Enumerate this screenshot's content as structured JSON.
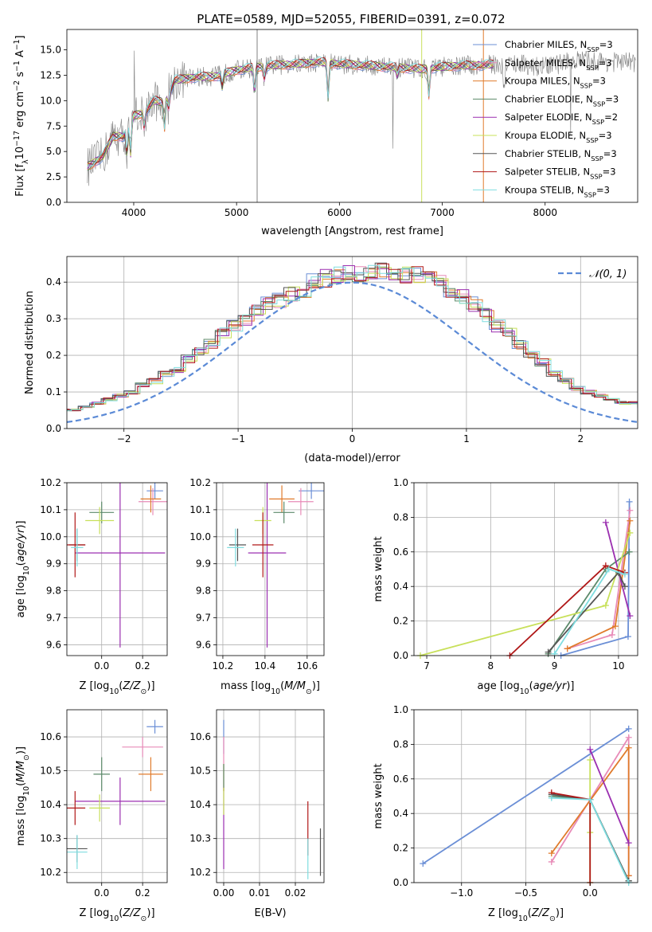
{
  "figure_title": "PLATE=0589, MJD=52055, FIBERID=0391, z=0.072",
  "colors": {
    "chabrier_miles": "#6b8fd6",
    "salpeter_miles": "#e88bb8",
    "kroupa_miles": "#e07b2c",
    "chabrier_elodie": "#5c8a6a",
    "salpeter_elodie": "#9b2fb0",
    "kroupa_elodie": "#c8e05a",
    "chabrier_stelib": "#555555",
    "salpeter_stelib": "#b01818",
    "kroupa_stelib": "#7fdde0",
    "data": "#808080",
    "gaussian": "#5b8ad6",
    "grid": "#b0b0b0"
  },
  "chart_data": [
    {
      "type": "line",
      "panel": "spectrum",
      "title": "PLATE=0589, MJD=52055, FIBERID=0391, z=0.072",
      "xlabel": "wavelength [Angstrom, rest frame]",
      "ylabel": "Flux [f_λ 10^-17 erg cm^-2 s^-1 A^-1]",
      "xlim": [
        3350,
        8900
      ],
      "ylim": [
        0,
        17.0
      ],
      "xticks": [
        4000,
        5000,
        6000,
        7000,
        8000
      ],
      "xtick_labels": [
        "4000",
        "5000",
        "6000",
        "7000",
        "8000"
      ],
      "yticks": [
        0.0,
        2.5,
        5.0,
        7.5,
        10.0,
        12.5,
        15.0
      ],
      "ytick_labels": [
        "0.0",
        "2.5",
        "5.0",
        "7.5",
        "10.0",
        "12.5",
        "15.0"
      ],
      "grid": false,
      "legend_position": "top-right",
      "legend": [
        "Chabrier MILES, N_SSP=3",
        "Salpeter MILES, N_SSP=3",
        "Kroupa MILES, N_SSP=3",
        "Chabrier ELODIE, N_SSP=3",
        "Salpeter ELODIE, N_SSP=2",
        "Kroupa ELODIE, N_SSP=3",
        "Chabrier STELIB, N_SSP=3",
        "Salpeter STELIB, N_SSP=3",
        "Kroupa STELIB, N_SSP=3"
      ],
      "continuum": {
        "x": [
          3550,
          3700,
          3800,
          3900,
          4000,
          4100,
          4200,
          4300,
          4400,
          4600,
          4800,
          5000,
          5200,
          5400,
          5600,
          5800,
          6000,
          6200,
          6500,
          6800,
          7100,
          7400,
          7700,
          8000,
          8300,
          8600
        ],
        "y": [
          3.5,
          4.5,
          6.5,
          6.5,
          8.5,
          8.8,
          10.0,
          9.8,
          12.0,
          12.3,
          12.4,
          13.0,
          13.3,
          13.5,
          13.6,
          13.8,
          13.6,
          13.5,
          13.3,
          13.1,
          13.4,
          13.5,
          13.7,
          13.3,
          14.0,
          13.8
        ]
      }
    },
    {
      "type": "bar",
      "panel": "residual-histogram",
      "xlabel": "(data-model)/error",
      "ylabel": "Normed distribution",
      "xlim": [
        -2.5,
        2.5
      ],
      "ylim": [
        0,
        0.47
      ],
      "xticks": [
        -2,
        -1,
        0,
        1,
        2
      ],
      "xtick_labels": [
        "−2",
        "−1",
        "0",
        "1",
        "2"
      ],
      "yticks": [
        0.0,
        0.1,
        0.2,
        0.3,
        0.4
      ],
      "ytick_labels": [
        "0.0",
        "0.1",
        "0.2",
        "0.3",
        "0.4"
      ],
      "grid": true,
      "legend_position": "top-right",
      "gaussian_label": "𝒩(0, 1)",
      "bin_width": 0.1,
      "base_histogram": [
        0.03,
        0.03,
        0.04,
        0.04,
        0.05,
        0.05,
        0.06,
        0.07,
        0.08,
        0.09,
        0.1,
        0.12,
        0.13,
        0.15,
        0.16,
        0.19,
        0.21,
        0.23,
        0.26,
        0.28,
        0.3,
        0.32,
        0.34,
        0.35,
        0.37,
        0.38,
        0.4,
        0.41,
        0.42,
        0.42,
        0.42,
        0.43,
        0.43,
        0.43,
        0.42,
        0.42,
        0.41,
        0.4,
        0.38,
        0.36,
        0.34,
        0.31,
        0.28,
        0.26,
        0.23,
        0.2,
        0.18,
        0.15,
        0.13,
        0.11,
        0.1,
        0.09,
        0.08,
        0.07,
        0.07,
        0.06,
        0.05,
        0.04,
        0.04,
        0.03
      ]
    },
    {
      "type": "scatter",
      "panel": "age-vs-Z",
      "xlabel": "Z [log10(Z/Z⊙)]",
      "ylabel": "age  [log10(age/yr)]",
      "xlim": [
        -0.17,
        0.32
      ],
      "ylim": [
        9.56,
        10.2
      ],
      "xticks": [
        0.0,
        0.2
      ],
      "xtick_labels": [
        "0.0",
        "0.2"
      ],
      "yticks": [
        9.6,
        9.7,
        9.8,
        9.9,
        10.0,
        10.1,
        10.2
      ],
      "ytick_labels": [
        "9.6",
        "9.7",
        "9.8",
        "9.9",
        "10.0",
        "10.1",
        "10.2"
      ],
      "grid": true,
      "points": [
        {
          "key": "chabrier_miles",
          "x": 0.26,
          "y": 10.17,
          "xerr": 0.04,
          "yerr": 0.03
        },
        {
          "key": "salpeter_miles",
          "x": 0.25,
          "y": 10.13,
          "xerr": 0.07,
          "yerr": 0.05
        },
        {
          "key": "kroupa_miles",
          "x": 0.24,
          "y": 10.14,
          "xerr": 0.05,
          "yerr": 0.05
        },
        {
          "key": "chabrier_elodie",
          "x": 0.0,
          "y": 10.09,
          "xerr": 0.06,
          "yerr": 0.04
        },
        {
          "key": "salpeter_elodie",
          "x": 0.09,
          "y": 9.94,
          "xerr": 0.22,
          "yerr": 0.35
        },
        {
          "key": "kroupa_elodie",
          "x": -0.01,
          "y": 10.06,
          "xerr": 0.07,
          "yerr": 0.05
        },
        {
          "key": "chabrier_stelib",
          "x": -0.12,
          "y": 9.97,
          "xerr": 0.04,
          "yerr": 0.06
        },
        {
          "key": "salpeter_stelib",
          "x": -0.13,
          "y": 9.97,
          "xerr": 0.05,
          "yerr": 0.12
        },
        {
          "key": "kroupa_stelib",
          "x": -0.12,
          "y": 9.96,
          "xerr": 0.03,
          "yerr": 0.07
        }
      ]
    },
    {
      "type": "scatter",
      "panel": "age-vs-mass",
      "xlabel": "mass [log10(M/M⊙)]",
      "ylabel": "",
      "xlim": [
        10.17,
        10.68
      ],
      "ylim": [
        9.56,
        10.2
      ],
      "xticks": [
        10.2,
        10.4,
        10.6
      ],
      "xtick_labels": [
        "10.2",
        "10.4",
        "10.6"
      ],
      "yticks": [
        9.6,
        9.7,
        9.8,
        9.9,
        10.0,
        10.1,
        10.2
      ],
      "ytick_labels": [
        "9.6",
        "9.7",
        "9.8",
        "9.9",
        "10.0",
        "10.1",
        "10.2"
      ],
      "grid": true,
      "points": [
        {
          "key": "chabrier_miles",
          "x": 10.62,
          "y": 10.17,
          "xerr": 0.06,
          "yerr": 0.03
        },
        {
          "key": "salpeter_miles",
          "x": 10.57,
          "y": 10.13,
          "xerr": 0.06,
          "yerr": 0.05
        },
        {
          "key": "kroupa_miles",
          "x": 10.48,
          "y": 10.14,
          "xerr": 0.06,
          "yerr": 0.05
        },
        {
          "key": "chabrier_elodie",
          "x": 10.49,
          "y": 10.09,
          "xerr": 0.05,
          "yerr": 0.04
        },
        {
          "key": "salpeter_elodie",
          "x": 10.41,
          "y": 9.94,
          "xerr": 0.09,
          "yerr": 0.35
        },
        {
          "key": "kroupa_elodie",
          "x": 10.39,
          "y": 10.06,
          "xerr": 0.04,
          "yerr": 0.05
        },
        {
          "key": "chabrier_stelib",
          "x": 10.27,
          "y": 9.97,
          "xerr": 0.04,
          "yerr": 0.06
        },
        {
          "key": "salpeter_stelib",
          "x": 10.39,
          "y": 9.97,
          "xerr": 0.05,
          "yerr": 0.12
        },
        {
          "key": "kroupa_stelib",
          "x": 10.26,
          "y": 9.96,
          "xerr": 0.04,
          "yerr": 0.07
        }
      ]
    },
    {
      "type": "line",
      "panel": "mass-weight-vs-age",
      "xlabel": "age  [log10(age/yr)]",
      "ylabel": "mass weight",
      "xlim": [
        6.8,
        10.3
      ],
      "ylim": [
        0.0,
        1.0
      ],
      "xticks": [
        7,
        8,
        9,
        10
      ],
      "xtick_labels": [
        "7",
        "8",
        "9",
        "10"
      ],
      "yticks": [
        0.0,
        0.2,
        0.4,
        0.6,
        0.8,
        1.0
      ],
      "ytick_labels": [
        "0.0",
        "0.2",
        "0.4",
        "0.6",
        "0.8",
        "1.0"
      ],
      "grid": true,
      "series": [
        {
          "key": "chabrier_miles",
          "x": [
            9.1,
            10.15,
            10.17
          ],
          "y": [
            0.0,
            0.11,
            0.89
          ]
        },
        {
          "key": "salpeter_miles",
          "x": [
            9.2,
            9.9,
            10.18
          ],
          "y": [
            0.04,
            0.12,
            0.84
          ]
        },
        {
          "key": "kroupa_miles",
          "x": [
            9.2,
            9.95,
            10.18
          ],
          "y": [
            0.04,
            0.17,
            0.78
          ]
        },
        {
          "key": "chabrier_elodie",
          "x": [
            8.9,
            9.8,
            10.17
          ],
          "y": [
            0.01,
            0.5,
            0.6
          ]
        },
        {
          "key": "salpeter_elodie",
          "x": [
            9.8,
            10.18
          ],
          "y": [
            0.77,
            0.23
          ]
        },
        {
          "key": "kroupa_elodie",
          "x": [
            6.9,
            9.8,
            10.18
          ],
          "y": [
            0.0,
            0.29,
            0.71
          ]
        },
        {
          "key": "chabrier_stelib",
          "x": [
            8.9,
            10.0,
            10.1
          ],
          "y": [
            0.02,
            0.48,
            0.4
          ]
        },
        {
          "key": "salpeter_stelib",
          "x": [
            8.3,
            9.8,
            10.1
          ],
          "y": [
            0.0,
            0.52,
            0.48
          ]
        },
        {
          "key": "kroupa_stelib",
          "x": [
            9.0,
            9.85,
            10.1
          ],
          "y": [
            0.01,
            0.5,
            0.47
          ]
        }
      ]
    },
    {
      "type": "scatter",
      "panel": "mass-vs-Z",
      "xlabel": "Z [log10(Z/Z⊙)]",
      "ylabel": "mass [log10(M/M⊙)]",
      "xlim": [
        -0.17,
        0.32
      ],
      "ylim": [
        10.17,
        10.68
      ],
      "xticks": [
        0.0,
        0.2
      ],
      "xtick_labels": [
        "0.0",
        "0.2"
      ],
      "yticks": [
        10.2,
        10.3,
        10.4,
        10.5,
        10.6
      ],
      "ytick_labels": [
        "10.2",
        "10.3",
        "10.4",
        "10.5",
        "10.6"
      ],
      "grid": true,
      "points": [
        {
          "key": "chabrier_miles",
          "x": 0.26,
          "y": 10.63,
          "xerr": 0.04,
          "yerr": 0.02
        },
        {
          "key": "salpeter_miles",
          "x": 0.2,
          "y": 10.57,
          "xerr": 0.1,
          "yerr": 0.03
        },
        {
          "key": "kroupa_miles",
          "x": 0.24,
          "y": 10.49,
          "xerr": 0.06,
          "yerr": 0.05
        },
        {
          "key": "chabrier_elodie",
          "x": 0.0,
          "y": 10.49,
          "xerr": 0.04,
          "yerr": 0.05
        },
        {
          "key": "salpeter_elodie",
          "x": 0.09,
          "y": 10.41,
          "xerr": 0.22,
          "yerr": 0.07
        },
        {
          "key": "kroupa_elodie",
          "x": -0.01,
          "y": 10.39,
          "xerr": 0.05,
          "yerr": 0.04
        },
        {
          "key": "chabrier_stelib",
          "x": -0.12,
          "y": 10.27,
          "xerr": 0.05,
          "yerr": 0.04
        },
        {
          "key": "salpeter_stelib",
          "x": -0.13,
          "y": 10.39,
          "xerr": 0.05,
          "yerr": 0.05
        },
        {
          "key": "kroupa_stelib",
          "x": -0.12,
          "y": 10.26,
          "xerr": 0.05,
          "yerr": 0.05
        }
      ]
    },
    {
      "type": "scatter",
      "panel": "mass-vs-ebv",
      "xlabel": "E(B-V)",
      "ylabel": "",
      "xlim": [
        -0.002,
        0.028
      ],
      "ylim": [
        10.17,
        10.68
      ],
      "xticks": [
        0.0,
        0.01,
        0.02
      ],
      "xtick_labels": [
        "0.00",
        "0.01",
        "0.02"
      ],
      "yticks": [
        10.2,
        10.3,
        10.4,
        10.5,
        10.6
      ],
      "ytick_labels": [
        "10.2",
        "10.3",
        "10.4",
        "10.5",
        "10.6"
      ],
      "grid": true,
      "points": [
        {
          "key": "chabrier_miles",
          "x": 0.0,
          "y": 10.6,
          "xerr": 0.0,
          "yerr": 0.05
        },
        {
          "key": "salpeter_miles",
          "x": 0.0,
          "y": 10.56,
          "xerr": 0.0,
          "yerr": 0.04
        },
        {
          "key": "kroupa_miles",
          "x": 0.0,
          "y": 10.48,
          "xerr": 0.0,
          "yerr": 0.04
        },
        {
          "key": "chabrier_elodie",
          "x": 0.0,
          "y": 10.48,
          "xerr": 0.0,
          "yerr": 0.04
        },
        {
          "key": "salpeter_elodie",
          "x": 0.0,
          "y": 10.33,
          "xerr": 0.0,
          "yerr": 0.12
        },
        {
          "key": "kroupa_elodie",
          "x": 0.0,
          "y": 10.41,
          "xerr": 0.0,
          "yerr": 0.04
        },
        {
          "key": "chabrier_stelib",
          "x": 0.027,
          "y": 10.26,
          "xerr": 0.0,
          "yerr": 0.07
        },
        {
          "key": "salpeter_stelib",
          "x": 0.0235,
          "y": 10.33,
          "xerr": 0.0,
          "yerr": 0.08
        },
        {
          "key": "kroupa_stelib",
          "x": 0.0235,
          "y": 10.24,
          "xerr": 0.0,
          "yerr": 0.06
        }
      ]
    },
    {
      "type": "line",
      "panel": "mass-weight-vs-Z",
      "xlabel": "Z [log10(Z/Z⊙)]",
      "ylabel": "mass weight",
      "xlim": [
        -1.37,
        0.37
      ],
      "ylim": [
        0.0,
        1.0
      ],
      "xticks": [
        -1.0,
        -0.5,
        0.0
      ],
      "xtick_labels": [
        "−1.0",
        "−0.5",
        "0.0"
      ],
      "yticks": [
        0.0,
        0.2,
        0.4,
        0.6,
        0.8,
        1.0
      ],
      "ytick_labels": [
        "0.0",
        "0.2",
        "0.4",
        "0.6",
        "0.8",
        "1.0"
      ],
      "grid": true,
      "series": [
        {
          "key": "chabrier_miles",
          "x": [
            -1.3,
            0.3
          ],
          "y": [
            0.11,
            0.89
          ]
        },
        {
          "key": "salpeter_miles",
          "x": [
            -0.3,
            0.3,
            0.3
          ],
          "y": [
            0.12,
            0.84,
            0.04
          ]
        },
        {
          "key": "kroupa_miles",
          "x": [
            -0.3,
            0.3,
            0.3
          ],
          "y": [
            0.17,
            0.78,
            0.04
          ]
        },
        {
          "key": "chabrier_elodie",
          "x": [
            -0.3,
            0.0,
            0.3
          ],
          "y": [
            0.5,
            0.48,
            0.01
          ]
        },
        {
          "key": "salpeter_elodie",
          "x": [
            0.0,
            0.3
          ],
          "y": [
            0.77,
            0.23
          ]
        },
        {
          "key": "kroupa_elodie",
          "x": [
            0.0,
            0.0,
            0.0
          ],
          "y": [
            0.71,
            0.29,
            0.0
          ]
        },
        {
          "key": "chabrier_stelib",
          "x": [
            -0.3,
            0.0,
            0.3
          ],
          "y": [
            0.51,
            0.48,
            0.01
          ]
        },
        {
          "key": "salpeter_stelib",
          "x": [
            -0.3,
            0.0,
            0.0
          ],
          "y": [
            0.52,
            0.48,
            0.0
          ]
        },
        {
          "key": "kroupa_stelib",
          "x": [
            -0.3,
            0.0,
            0.3
          ],
          "y": [
            0.49,
            0.48,
            0.0
          ]
        }
      ]
    }
  ]
}
